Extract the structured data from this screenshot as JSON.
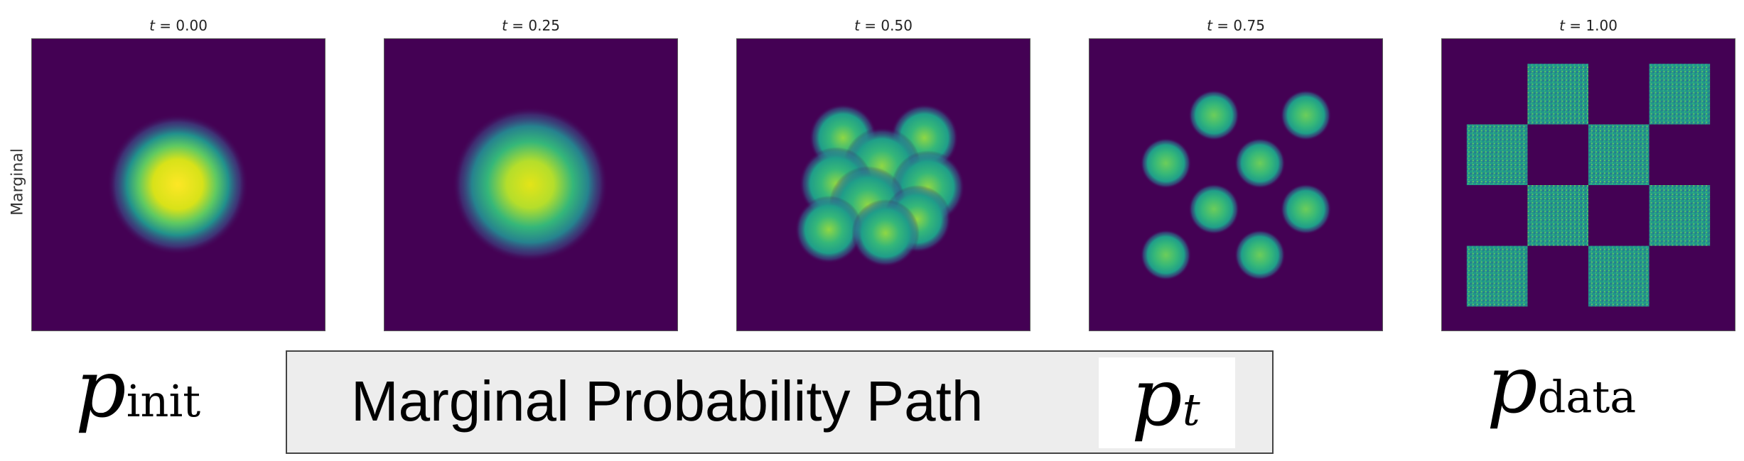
{
  "y_axis_label": "Marginal",
  "panels": [
    {
      "title_var": "t",
      "title_eq": " = ",
      "title_val": "0.00",
      "state": "gaussian"
    },
    {
      "title_var": "t",
      "title_eq": " = ",
      "title_val": "0.25",
      "state": "gaussian-wider"
    },
    {
      "title_var": "t",
      "title_eq": " = ",
      "title_val": "0.50",
      "state": "blurred-checkerboard"
    },
    {
      "title_var": "t",
      "title_eq": " = ",
      "title_val": "0.75",
      "state": "soft-checkerboard"
    },
    {
      "title_var": "t",
      "title_eq": " = ",
      "title_val": "1.00",
      "state": "checkerboard"
    }
  ],
  "labels": {
    "init": {
      "base": "p",
      "sub": "init"
    },
    "path_text": "Marginal Probability Path",
    "pt": {
      "base": "p",
      "sub": "t"
    },
    "data": {
      "base": "p",
      "sub": "data"
    }
  },
  "colors": {
    "background": "#440154",
    "density_high": "#fde725",
    "density_mid": "#35b779",
    "density_low": "#21918c"
  }
}
